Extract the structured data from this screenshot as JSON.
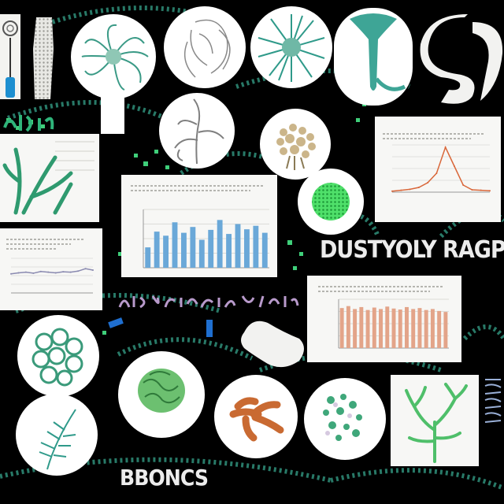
{
  "headline_text": "DUSTYOLY RAGP",
  "footer_text": "BBONCS",
  "colors": {
    "background": "#000000",
    "accent_green": "#2fb47a",
    "teal": "#2f9a8a",
    "bar_blue": "#6aa8d8",
    "bar_orange": "#e3a489",
    "line_orange": "#d9673a",
    "coral_orange": "#c96a32",
    "lime": "#3bd45a"
  },
  "illustrations": [
    {
      "name": "seahorse-hourglass-illustration"
    },
    {
      "name": "lace-column-illustration"
    },
    {
      "name": "green-polyp-illustration"
    },
    {
      "name": "gray-sketch-illustration"
    },
    {
      "name": "radial-teal-illustration"
    },
    {
      "name": "teal-trumpet-illustration"
    },
    {
      "name": "gray-swirl-illustration"
    },
    {
      "name": "gray-branch-illustration"
    },
    {
      "name": "beige-coral-illustration"
    },
    {
      "name": "lime-blob-illustration"
    },
    {
      "name": "green-cluster-illustration"
    },
    {
      "name": "green-brain-illustration"
    },
    {
      "name": "orange-coral-illustration"
    },
    {
      "name": "scattered-cells-illustration"
    },
    {
      "name": "green-branch-illustration"
    },
    {
      "name": "green-fan-illustration"
    },
    {
      "name": "white-pebble-illustration"
    }
  ],
  "charts": [
    {
      "name": "blue-bar-chart",
      "type": "bar",
      "series_values": [
        0.35,
        0.62,
        0.55,
        0.78,
        0.6,
        0.7,
        0.48,
        0.65,
        0.82,
        0.58,
        0.75,
        0.66,
        0.72,
        0.6
      ]
    },
    {
      "name": "orange-bar-chart",
      "type": "bar",
      "series_values": [
        0.82,
        0.86,
        0.8,
        0.84,
        0.78,
        0.83,
        0.8,
        0.85,
        0.81,
        0.79,
        0.84,
        0.8,
        0.82,
        0.78,
        0.8,
        0.76,
        0.74
      ]
    },
    {
      "name": "peak-line-chart",
      "type": "line",
      "series_values": [
        0.02,
        0.04,
        0.06,
        0.1,
        0.2,
        0.4,
        0.95,
        0.55,
        0.15,
        0.05,
        0.04,
        0.03
      ]
    },
    {
      "name": "flat-line-chart",
      "type": "line",
      "series_values": [
        0.55,
        0.58,
        0.6,
        0.57,
        0.62,
        0.6,
        0.58,
        0.61,
        0.6,
        0.63,
        0.7,
        0.66
      ]
    }
  ]
}
